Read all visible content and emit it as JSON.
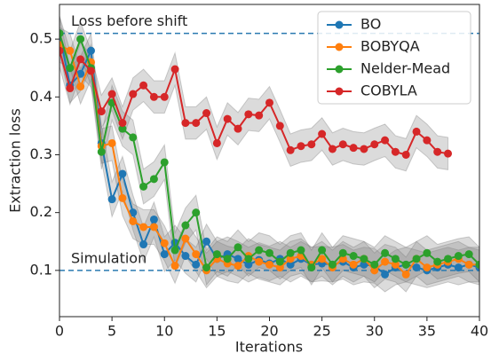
{
  "chart_data": {
    "type": "line",
    "xlabel": "Iterations",
    "ylabel": "Extraction loss",
    "x": [
      0,
      1,
      2,
      3,
      4,
      5,
      6,
      7,
      8,
      9,
      10,
      11,
      12,
      13,
      14,
      15,
      16,
      17,
      18,
      19,
      20,
      21,
      22,
      23,
      24,
      25,
      26,
      27,
      28,
      29,
      30,
      31,
      32,
      33,
      34,
      35,
      36,
      37,
      38,
      39,
      40
    ],
    "xlim": [
      0,
      40
    ],
    "xticks": [
      0,
      5,
      10,
      15,
      20,
      25,
      30,
      35,
      40
    ],
    "ylim": [
      0.02,
      0.56
    ],
    "yticks": [
      0.1,
      0.2,
      0.3,
      0.4,
      0.5
    ],
    "legend": "upper right",
    "hlines": [
      {
        "value": 0.51,
        "label": "Loss before shift",
        "color": "#2a7ab0"
      },
      {
        "value": 0.1,
        "label": "Simulation",
        "color": "#2a7ab0"
      }
    ],
    "series": [
      {
        "name": "BO",
        "color": "#1f77b4",
        "band": 0.03,
        "values": [
          0.51,
          0.42,
          0.44,
          0.48,
          0.32,
          0.223,
          0.267,
          0.2,
          0.145,
          0.188,
          0.128,
          0.148,
          0.125,
          0.11,
          0.15,
          0.12,
          0.128,
          0.12,
          0.11,
          0.118,
          0.112,
          0.12,
          0.11,
          0.12,
          0.11,
          0.112,
          0.11,
          0.115,
          0.105,
          0.11,
          0.108,
          0.093,
          0.105,
          0.11,
          0.105,
          0.1,
          0.105,
          0.11,
          0.105,
          0.11,
          0.105
        ]
      },
      {
        "name": "BOBYQA",
        "color": "#ff7f0e",
        "band": 0.03,
        "values": [
          0.49,
          0.48,
          0.418,
          0.46,
          0.315,
          0.32,
          0.225,
          0.185,
          0.175,
          0.175,
          0.147,
          0.108,
          0.155,
          0.128,
          0.1,
          0.12,
          0.112,
          0.108,
          0.125,
          0.115,
          0.11,
          0.105,
          0.12,
          0.125,
          0.11,
          0.12,
          0.105,
          0.12,
          0.11,
          0.12,
          0.1,
          0.115,
          0.11,
          0.093,
          0.12,
          0.105,
          0.11,
          0.115,
          0.12,
          0.11,
          0.11
        ]
      },
      {
        "name": "Nelder-Mead",
        "color": "#2ca02c",
        "band": 0.03,
        "values": [
          0.51,
          0.45,
          0.5,
          0.45,
          0.305,
          0.39,
          0.345,
          0.33,
          0.245,
          0.258,
          0.287,
          0.135,
          0.178,
          0.2,
          0.105,
          0.128,
          0.12,
          0.14,
          0.12,
          0.135,
          0.13,
          0.115,
          0.13,
          0.135,
          0.105,
          0.135,
          0.11,
          0.13,
          0.125,
          0.12,
          0.11,
          0.13,
          0.12,
          0.11,
          0.12,
          0.13,
          0.115,
          0.12,
          0.125,
          0.128,
          0.11
        ]
      },
      {
        "name": "COBYLA",
        "color": "#d62728",
        "band": 0.028,
        "values": [
          0.48,
          0.415,
          0.465,
          0.445,
          0.375,
          0.405,
          0.355,
          0.405,
          0.42,
          0.4,
          0.4,
          0.448,
          0.355,
          0.355,
          0.372,
          0.32,
          0.362,
          0.345,
          0.37,
          0.368,
          0.39,
          0.35,
          0.308,
          0.315,
          0.318,
          0.336,
          0.31,
          0.318,
          0.312,
          0.31,
          0.318,
          0.325,
          0.305,
          0.3,
          0.34,
          0.325,
          0.305,
          0.302,
          null,
          null,
          null
        ]
      }
    ]
  }
}
